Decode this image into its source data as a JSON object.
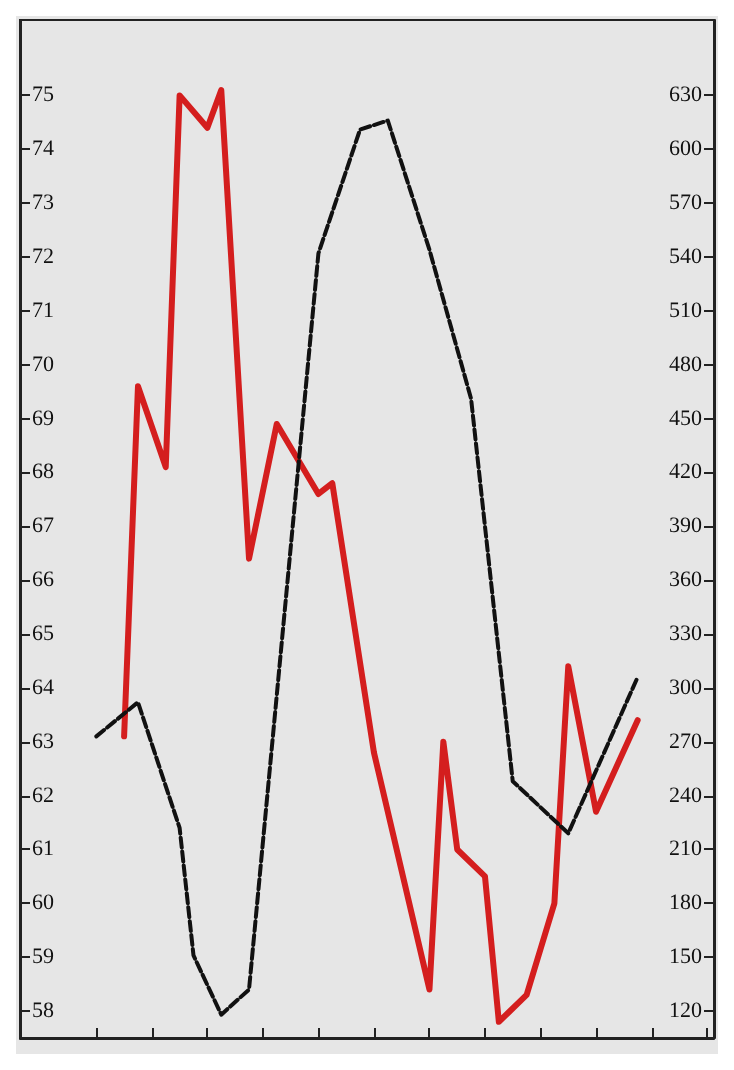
{
  "chart_data": {
    "type": "line",
    "categories": [
      null,
      null,
      null,
      null,
      null,
      null,
      null,
      null,
      null,
      null,
      null,
      null,
      null,
      null,
      null,
      null,
      null,
      null,
      null,
      null,
      null,
      null,
      null,
      null,
      null,
      null,
      null,
      null,
      null,
      null,
      null,
      null,
      null,
      null,
      null,
      null,
      null,
      null,
      null,
      null,
      null,
      null,
      null,
      null,
      null,
      null,
      null,
      null,
      null,
      null
    ],
    "ylim": [
      57.5,
      76.4
    ],
    "yticks": [
      58,
      59,
      60,
      61,
      62,
      63,
      64,
      65,
      66,
      67,
      68,
      69,
      70,
      71,
      72,
      73,
      74,
      75
    ],
    "y2lim": [
      105,
      672
    ],
    "y2ticks": [
      120,
      150,
      180,
      210,
      240,
      270,
      300,
      330,
      360,
      390,
      420,
      450,
      480,
      510,
      540,
      570,
      600,
      630
    ],
    "grid": false,
    "marker": "none",
    "series": [
      {
        "color": "#d41e1e",
        "line_style": "solid",
        "values": [
          null,
          null,
          null,
          null,
          null,
          null,
          null,
          63.1,
          69.6,
          null,
          68.1,
          75,
          null,
          74.4,
          75.1,
          null,
          66.4,
          null,
          68.9,
          null,
          null,
          67.6,
          67.8,
          null,
          null,
          62.8,
          null,
          null,
          null,
          58.4,
          63,
          61,
          null,
          60.5,
          57.8,
          null,
          58.3,
          null,
          60,
          64.4,
          null,
          61.7,
          null,
          null,
          63.4,
          null,
          null,
          null,
          null,
          null
        ]
      },
      {
        "color": "#111111",
        "line_style": "dashed",
        "axis": "y2",
        "values": [
          null,
          null,
          null,
          null,
          null,
          273,
          null,
          null,
          292,
          null,
          null,
          222,
          151,
          null,
          118,
          null,
          132,
          null,
          null,
          null,
          null,
          542,
          null,
          null,
          611,
          null,
          616,
          null,
          null,
          544,
          null,
          null,
          461,
          null,
          null,
          248,
          null,
          null,
          null,
          219,
          null,
          null,
          null,
          null,
          306,
          null,
          null,
          null,
          null,
          null
        ]
      }
    ]
  }
}
